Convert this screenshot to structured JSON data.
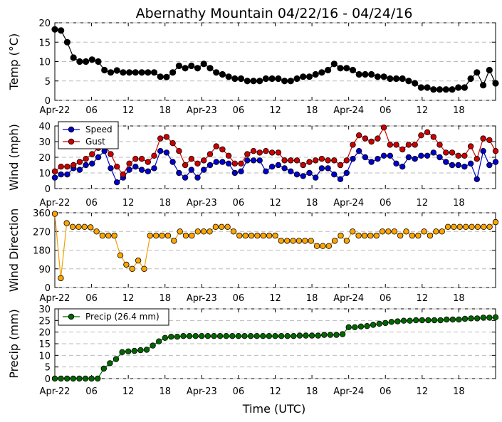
{
  "chart_data": {
    "type": "line",
    "title": "Abernathy Mountain 04/22/16 - 04/24/16",
    "xlabel": "Time (UTC)",
    "x_tick_labels": [
      "Apr-22",
      "06",
      "12",
      "18",
      "Apr-23",
      "06",
      "12",
      "18",
      "Apr-24",
      "06",
      "12",
      "18"
    ],
    "x_tick_hours": [
      0,
      6,
      12,
      18,
      24,
      30,
      36,
      42,
      48,
      54,
      60,
      66
    ],
    "x_range_hours": [
      0,
      72
    ],
    "grid": "horizontal dashed",
    "panels": [
      {
        "name": "temp",
        "ylabel": "Temp (°C)",
        "ylim": [
          0,
          20
        ],
        "yticks": [
          0,
          5,
          10,
          15,
          20
        ],
        "legend": null,
        "series": [
          {
            "name": "",
            "color": "#000000",
            "values": [
              18.3,
              18,
              15,
              11,
              10,
              10,
              10.5,
              10,
              7.8,
              7.2,
              7.7,
              7.2,
              7.2,
              7.2,
              7.2,
              7.2,
              7.2,
              6.1,
              6,
              7.2,
              8.9,
              8.3,
              8.9,
              8.3,
              9.4,
              8.3,
              7.2,
              6.7,
              6.1,
              5.6,
              5.6,
              5,
              5,
              5,
              5.6,
              5.6,
              5.6,
              5,
              5,
              5.6,
              6.1,
              6.1,
              6.7,
              7.2,
              7.8,
              9.4,
              8.3,
              8.3,
              7.8,
              6.7,
              6.7,
              6.7,
              6.1,
              6.1,
              5.6,
              5.6,
              5.6,
              5,
              4.4,
              3.3,
              3.3,
              2.8,
              2.8,
              2.8,
              2.8,
              3.3,
              3.3,
              5.6,
              7.2,
              3.9,
              7.8,
              4.4
            ]
          }
        ]
      },
      {
        "name": "wind",
        "ylabel": "Wind (mph)",
        "ylim": [
          0,
          40
        ],
        "yticks": [
          0,
          10,
          20,
          30,
          40
        ],
        "legend": "top-left",
        "series": [
          {
            "name": "Speed",
            "color": "#0000cc",
            "values": [
              7,
              9,
              9,
              13,
              12,
              15,
              16,
              20,
              24,
              13,
              4,
              7,
              12,
              14,
              12,
              11,
              13,
              24,
              23,
              17,
              10,
              7,
              12,
              7,
              12,
              15,
              17,
              17,
              16,
              10,
              11,
              18,
              18,
              18,
              11,
              14,
              15,
              13,
              11,
              9,
              8,
              10,
              7,
              13,
              13,
              9,
              6,
              10,
              19,
              24,
              20,
              17,
              19,
              21,
              21,
              16,
              14,
              20,
              19,
              21,
              21,
              23,
              20,
              17,
              15,
              15,
              14,
              16,
              6,
              24,
              15,
              17
            ]
          },
          {
            "name": "Gust",
            "color": "#cc0000",
            "values": [
              11,
              14,
              14,
              15,
              17,
              19,
              22,
              26,
              28,
              22,
              14,
              9,
              16,
              19,
              19,
              17,
              21,
              32,
              33,
              29,
              24,
              15,
              19,
              16,
              18,
              22,
              27,
              25,
              21,
              16,
              16,
              22,
              24,
              23,
              24,
              23,
              23,
              18,
              18,
              18,
              15,
              17,
              18,
              19,
              18,
              18,
              15,
              18,
              28,
              34,
              32,
              30,
              32,
              39,
              28,
              28,
              25,
              28,
              28,
              34,
              36,
              33,
              28,
              23,
              23,
              21,
              21,
              27,
              19,
              32,
              31,
              24
            ]
          }
        ]
      },
      {
        "name": "direction",
        "ylabel": "Wind Direction",
        "ylim": [
          0,
          360
        ],
        "yticks": [
          0,
          90,
          180,
          270,
          360
        ],
        "legend": null,
        "series": [
          {
            "name": "",
            "color": "#ffa500",
            "values": [
              355,
              45,
              310,
              292,
              292,
              292,
              290,
              270,
              250,
              250,
              250,
              155,
              110,
              90,
              130,
              90,
              250,
              250,
              250,
              250,
              225,
              270,
              250,
              250,
              270,
              270,
              270,
              292,
              292,
              292,
              270,
              250,
              250,
              250,
              250,
              250,
              250,
              250,
              225,
              225,
              225,
              225,
              225,
              225,
              200,
              200,
              200,
              225,
              250,
              225,
              270,
              250,
              250,
              250,
              250,
              270,
              270,
              270,
              250,
              270,
              250,
              250,
              270,
              250,
              270,
              270,
              292,
              292,
              292,
              292,
              292,
              292,
              292,
              292,
              315
            ]
          }
        ]
      },
      {
        "name": "precip",
        "ylabel": "Precip (mm)",
        "ylim": [
          0,
          30
        ],
        "yticks": [
          0,
          5,
          10,
          15,
          20,
          25,
          30
        ],
        "legend": "top-left",
        "series": [
          {
            "name": "Precip (26.4 mm)",
            "color": "#006600",
            "values": [
              0,
              0,
              0,
              0,
              0,
              0,
              0,
              0,
              4.3,
              6.6,
              8.4,
              11.4,
              11.7,
              11.9,
              12.2,
              12.4,
              14.2,
              16.0,
              17.5,
              18.0,
              18.0,
              18.3,
              18.3,
              18.3,
              18.3,
              18.3,
              18.3,
              18.3,
              18.3,
              18.3,
              18.3,
              18.3,
              18.3,
              18.3,
              18.3,
              18.3,
              18.3,
              18.3,
              18.3,
              18.3,
              18.5,
              18.5,
              18.5,
              18.5,
              18.8,
              18.8,
              18.8,
              19.1,
              22.1,
              22.1,
              22.4,
              22.6,
              23.1,
              23.6,
              23.9,
              24.4,
              24.6,
              24.9,
              24.9,
              25.1,
              25.1,
              25.1,
              25.1,
              25.1,
              25.4,
              25.4,
              25.4,
              25.7,
              25.9,
              25.9,
              26.2,
              26.2,
              26.4
            ]
          }
        ]
      }
    ]
  }
}
